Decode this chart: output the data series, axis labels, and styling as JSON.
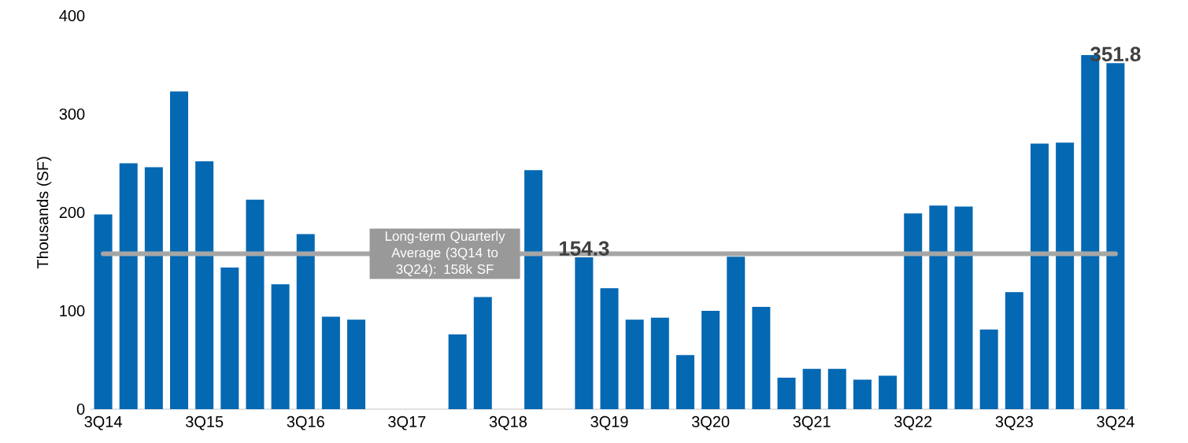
{
  "chart_data": {
    "type": "bar",
    "ylabel": "Thousands (SF)",
    "categories": [
      "3Q14",
      null,
      null,
      null,
      "3Q15",
      null,
      null,
      null,
      "3Q16",
      null,
      null,
      null,
      "3Q17",
      null,
      null,
      null,
      "3Q18",
      null,
      null,
      null,
      "3Q19",
      null,
      null,
      null,
      "3Q20",
      null,
      null,
      null,
      "3Q21",
      null,
      null,
      null,
      "3Q22",
      null,
      null,
      null,
      "3Q23",
      null,
      null,
      null,
      "3Q24"
    ],
    "values": [
      198,
      250,
      246,
      323,
      252,
      144,
      213,
      127,
      178,
      94,
      91,
      null,
      null,
      null,
      76,
      114,
      null,
      243,
      null,
      154.3,
      123,
      91,
      93,
      55,
      100,
      155,
      104,
      32,
      41,
      41,
      30,
      34,
      199,
      207,
      206,
      81,
      119,
      270,
      271,
      360,
      351.8
    ],
    "value_labels": [
      null,
      null,
      null,
      null,
      null,
      null,
      null,
      null,
      null,
      null,
      null,
      null,
      null,
      null,
      null,
      null,
      null,
      null,
      null,
      "154.3",
      null,
      null,
      null,
      null,
      null,
      null,
      null,
      null,
      null,
      null,
      null,
      null,
      null,
      null,
      null,
      null,
      null,
      null,
      null,
      null,
      "351.8"
    ],
    "color": "#0568b3",
    "ylim": [
      0,
      400
    ],
    "yticks": [
      0,
      100,
      200,
      300,
      400
    ],
    "ref_lines": [
      {
        "axis": "y",
        "value": 158,
        "label": "Long-term Quarterly Average (3Q14 to 3Q24): 158k SF",
        "color": "#a6a6a6"
      }
    ]
  }
}
